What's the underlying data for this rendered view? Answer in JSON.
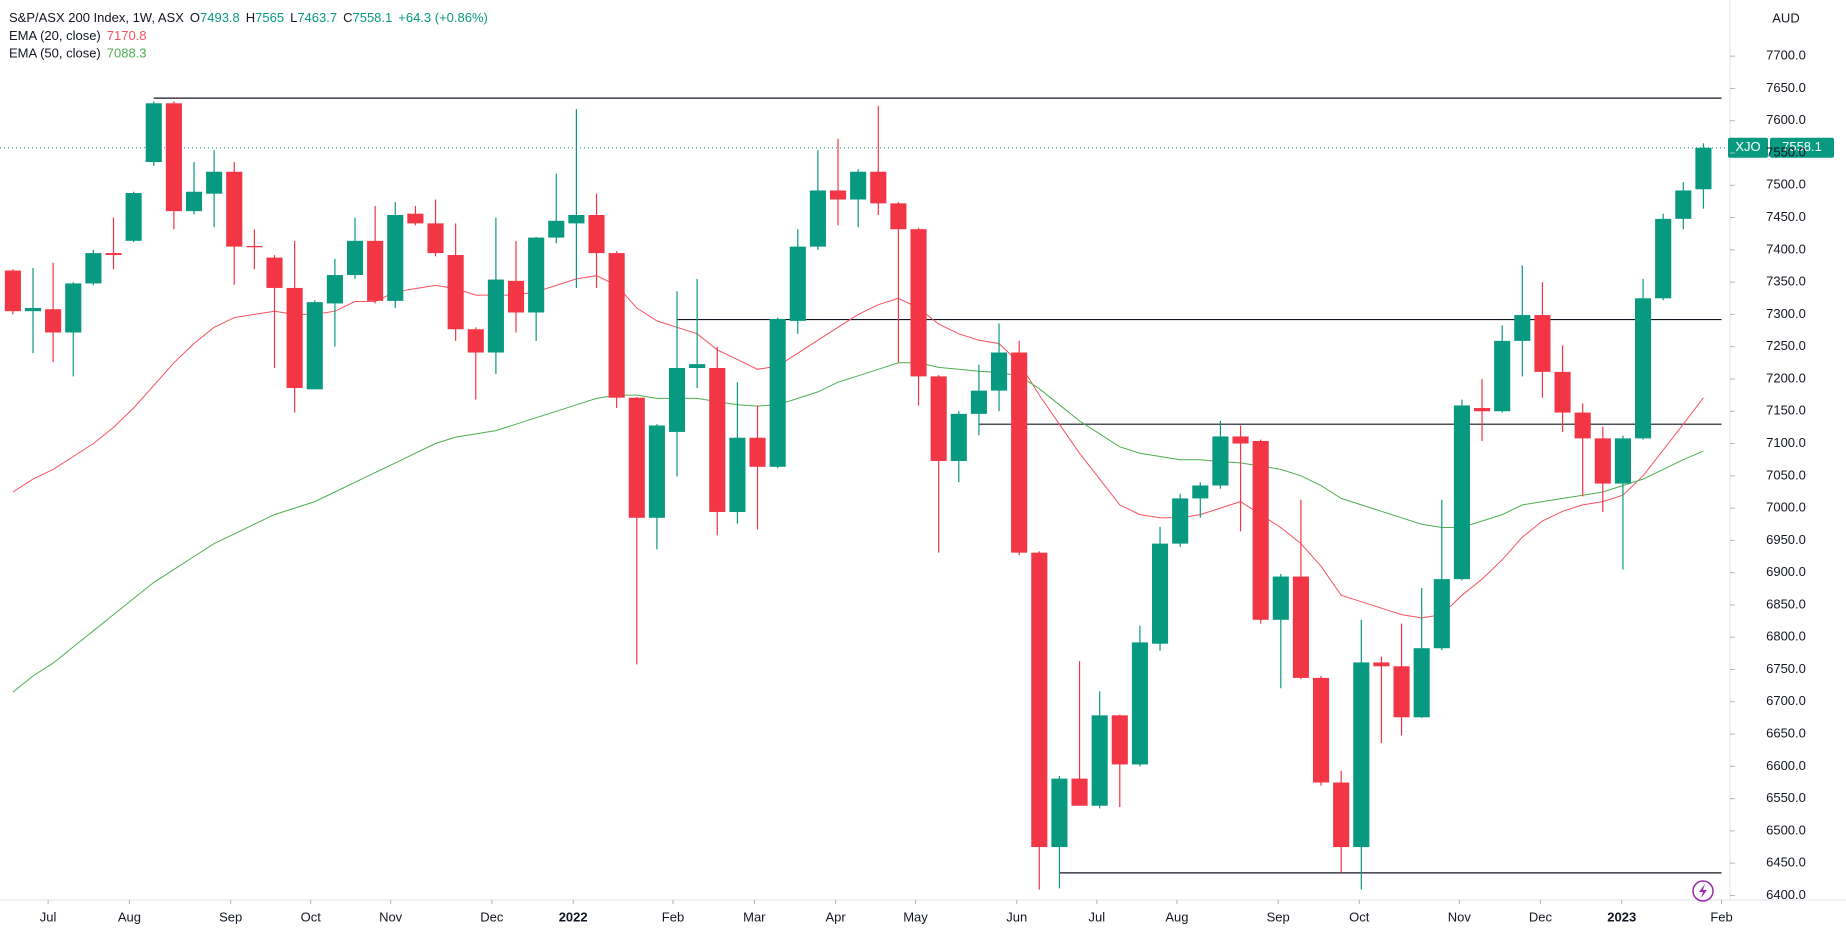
{
  "chart_data": {
    "type": "candlestick",
    "title": "S&P/ASX 200 Index, 1W, ASX",
    "ohlc_labels": [
      "O",
      "H",
      "L",
      "C"
    ],
    "change": "+64.3 (+0.86%)",
    "symbol": "XJO",
    "currency": "AUD",
    "up_color": "#089981",
    "down_color": "#f23645",
    "x": [
      0,
      1,
      2,
      3,
      4,
      5,
      6,
      7,
      8,
      9,
      10,
      11,
      12,
      13,
      14,
      15,
      16,
      17,
      18,
      19,
      20,
      21,
      22,
      23,
      24,
      25,
      26,
      27,
      28,
      29,
      30,
      31,
      32,
      33,
      34,
      35,
      36,
      37,
      38,
      39,
      40,
      41,
      42,
      43,
      44,
      45,
      46,
      47,
      48,
      49,
      50,
      51,
      52,
      53,
      54,
      55,
      56,
      57,
      58,
      59,
      60,
      61,
      62,
      63,
      64,
      65,
      66,
      67,
      68,
      69,
      70,
      71,
      72,
      73,
      74,
      75,
      76,
      77,
      78,
      79,
      80,
      81,
      82,
      83,
      84
    ],
    "open": [
      7368,
      7305,
      7308,
      7272,
      7348,
      7395,
      7414,
      7536,
      7627,
      7460,
      7487,
      7521,
      7406,
      7388,
      7341,
      7184,
      7317,
      7361,
      7414,
      7321,
      7456,
      7441,
      7392,
      7277,
      7241,
      7352,
      7303,
      7419,
      7441,
      7454,
      7395,
      7171,
      6985,
      7118,
      7217,
      7217,
      6994,
      7109,
      7064,
      7290,
      7405,
      7492,
      7478,
      7521,
      7472,
      7432,
      7204,
      7073,
      7146,
      7182,
      7241,
      6931,
      6475,
      6581,
      6539,
      6679,
      6603,
      6790,
      6945,
      7015,
      7035,
      7111,
      7104,
      6827,
      6894,
      6737,
      6575,
      6475,
      6761,
      6755,
      6676,
      6783,
      6890,
      7155,
      7150,
      7259,
      7299,
      7211,
      7148,
      7108,
      7038,
      7108,
      7325,
      7448,
      7493.8
    ],
    "high": [
      7370,
      7372,
      7380,
      7350,
      7400,
      7450,
      7490,
      7630,
      7630,
      7536,
      7554,
      7536,
      7432,
      7392,
      7414,
      7322,
      7386,
      7450,
      7468,
      7474,
      7468,
      7478,
      7441,
      7280,
      7450,
      7414,
      7420,
      7518,
      7618,
      7487,
      7398,
      7172,
      7130,
      7336,
      7355,
      7250,
      7195,
      7159,
      7295,
      7432,
      7554,
      7572,
      7525,
      7623,
      7474,
      7434,
      7206,
      7150,
      7222,
      7286,
      7259,
      6933,
      6585,
      6763,
      6716,
      6680,
      6818,
      6971,
      7022,
      7040,
      7135,
      7128,
      7106,
      6898,
      7013,
      6740,
      6593,
      6827,
      6770,
      6821,
      6876,
      7013,
      7168,
      7200,
      7283,
      7376,
      7350,
      7252,
      7162,
      7126,
      7112,
      7355,
      7456,
      7505,
      7565.0
    ],
    "low": [
      7300,
      7240,
      7226,
      7204,
      7345,
      7370,
      7412,
      7530,
      7432,
      7455,
      7435,
      7346,
      7370,
      7217,
      7148,
      7184,
      7250,
      7355,
      7317,
      7310,
      7438,
      7390,
      7259,
      7168,
      7208,
      7272,
      7259,
      7410,
      7341,
      7341,
      7155,
      6758,
      6936,
      7049,
      7186,
      6958,
      6976,
      6967,
      7062,
      7270,
      7400,
      7438,
      7435,
      7454,
      7226,
      7159,
      6931,
      7040,
      7113,
      7150,
      6927,
      6409,
      6411,
      6539,
      6535,
      6537,
      6600,
      6779,
      6940,
      6985,
      7030,
      6964,
      6821,
      6721,
      6735,
      6570,
      6435,
      6409,
      6636,
      6648,
      6675,
      6780,
      6888,
      7104,
      7148,
      7204,
      7171,
      7118,
      7018,
      6994,
      6905,
      7106,
      7322,
      7432,
      7463.7
    ],
    "close": [
      7305,
      7310,
      7272,
      7348,
      7395,
      7392,
      7488,
      7627,
      7460,
      7490,
      7521,
      7405,
      7404,
      7341,
      7186,
      7319,
      7361,
      7414,
      7321,
      7454,
      7441,
      7395,
      7277,
      7241,
      7354,
      7303,
      7419,
      7445,
      7454,
      7395,
      7171,
      6985,
      7128,
      7217,
      7223,
      6994,
      7109,
      7064,
      7293,
      7405,
      7492,
      7478,
      7521,
      7472,
      7432,
      7204,
      7073,
      7146,
      7182,
      7241,
      6931,
      6475,
      6581,
      6539,
      6679,
      6603,
      6792,
      6945,
      7015,
      7035,
      7111,
      7100,
      6827,
      6894,
      6737,
      6575,
      6475,
      6761,
      6755,
      6676,
      6783,
      6890,
      7159,
      7150,
      7259,
      7299,
      7211,
      7148,
      7108,
      7038,
      7108,
      7325,
      7448,
      7492,
      7558.1
    ],
    "series": [
      {
        "name": "EMA (20, close)",
        "color": "#f7525f",
        "values": [
          7025,
          7045,
          7060,
          7080,
          7100,
          7125,
          7155,
          7190,
          7225,
          7255,
          7280,
          7295,
          7300,
          7305,
          7300,
          7300,
          7305,
          7320,
          7320,
          7335,
          7340,
          7345,
          7340,
          7330,
          7330,
          7330,
          7335,
          7345,
          7355,
          7360,
          7345,
          7310,
          7290,
          7280,
          7270,
          7245,
          7230,
          7215,
          7220,
          7240,
          7260,
          7280,
          7300,
          7315,
          7325,
          7310,
          7285,
          7270,
          7260,
          7255,
          7225,
          7175,
          7130,
          7085,
          7045,
          7005,
          6990,
          6985,
          6985,
          6990,
          7000,
          7010,
          6990,
          6970,
          6945,
          6910,
          6865,
          6855,
          6845,
          6835,
          6830,
          6835,
          6865,
          6890,
          6920,
          6955,
          6980,
          6995,
          7005,
          7010,
          7020,
          7050,
          7090,
          7130,
          7170.8
        ]
      },
      {
        "name": "EMA (50, close)",
        "color": "#4caf50",
        "values": [
          6715,
          6740,
          6760,
          6785,
          6810,
          6835,
          6860,
          6885,
          6905,
          6925,
          6945,
          6960,
          6975,
          6990,
          7000,
          7010,
          7025,
          7040,
          7055,
          7070,
          7085,
          7100,
          7110,
          7115,
          7120,
          7130,
          7140,
          7150,
          7160,
          7170,
          7175,
          7175,
          7170,
          7170,
          7170,
          7165,
          7160,
          7158,
          7160,
          7170,
          7180,
          7195,
          7205,
          7215,
          7225,
          7225,
          7218,
          7215,
          7212,
          7210,
          7205,
          7185,
          7160,
          7135,
          7115,
          7095,
          7085,
          7080,
          7075,
          7075,
          7072,
          7070,
          7065,
          7060,
          7050,
          7035,
          7015,
          7005,
          6995,
          6985,
          6975,
          6970,
          6970,
          6980,
          6990,
          7005,
          7010,
          7015,
          7020,
          7025,
          7035,
          7045,
          7060,
          7075,
          7088.3
        ]
      }
    ],
    "hlines": [
      {
        "value": 7635,
        "from": 7
      },
      {
        "value": 7292,
        "from": 33
      },
      {
        "value": 7130,
        "from": 48
      },
      {
        "value": 6435,
        "from": 52
      }
    ],
    "xlim": [
      -0.64,
      85.32
    ],
    "ylim": [
      6393,
      7787
    ],
    "xticks": [
      {
        "value": 1.75,
        "label": "Jul"
      },
      {
        "value": 5.79,
        "label": "Aug"
      },
      {
        "value": 10.82,
        "label": "Sep"
      },
      {
        "value": 14.8,
        "label": "Oct"
      },
      {
        "value": 18.77,
        "label": "Nov"
      },
      {
        "value": 23.8,
        "label": "Dec"
      },
      {
        "value": 27.84,
        "label": "2022"
      },
      {
        "value": 32.8,
        "label": "Feb"
      },
      {
        "value": 36.84,
        "label": "Mar"
      },
      {
        "value": 40.88,
        "label": "Apr"
      },
      {
        "value": 44.85,
        "label": "May"
      },
      {
        "value": 49.88,
        "label": "Jun"
      },
      {
        "value": 53.86,
        "label": "Jul"
      },
      {
        "value": 57.84,
        "label": "Aug"
      },
      {
        "value": 62.87,
        "label": "Sep"
      },
      {
        "value": 66.9,
        "label": "Oct"
      },
      {
        "value": 71.87,
        "label": "Nov"
      },
      {
        "value": 75.9,
        "label": "Dec"
      },
      {
        "value": 79.94,
        "label": "2023"
      },
      {
        "value": 84.9,
        "label": "Feb"
      }
    ],
    "yticks": [
      {
        "value": 6400,
        "label": "6400.0"
      },
      {
        "value": 6450,
        "label": "6450.0"
      },
      {
        "value": 6500,
        "label": "6500.0"
      },
      {
        "value": 6550,
        "label": "6550.0"
      },
      {
        "value": 6600,
        "label": "6600.0"
      },
      {
        "value": 6650,
        "label": "6650.0"
      },
      {
        "value": 6700,
        "label": "6700.0"
      },
      {
        "value": 6750,
        "label": "6750.0"
      },
      {
        "value": 6800,
        "label": "6800.0"
      },
      {
        "value": 6850,
        "label": "6850.0"
      },
      {
        "value": 6900,
        "label": "6900.0"
      },
      {
        "value": 6950,
        "label": "6950.0"
      },
      {
        "value": 7000,
        "label": "7000.0"
      },
      {
        "value": 7050,
        "label": "7050.0"
      },
      {
        "value": 7100,
        "label": "7100.0"
      },
      {
        "value": 7150,
        "label": "7150.0"
      },
      {
        "value": 7200,
        "label": "7200.0"
      },
      {
        "value": 7250,
        "label": "7250.0"
      },
      {
        "value": 7300,
        "label": "7300.0"
      },
      {
        "value": 7350,
        "label": "7350.0"
      },
      {
        "value": 7400,
        "label": "7400.0"
      },
      {
        "value": 7450,
        "label": "7450.0"
      },
      {
        "value": 7500,
        "label": "7500.0"
      },
      {
        "value": 7550,
        "label": "7550.0"
      },
      {
        "value": 7600,
        "label": "7600.0"
      },
      {
        "value": 7650,
        "label": "7650.0"
      },
      {
        "value": 7700,
        "label": "7700.0"
      }
    ]
  }
}
